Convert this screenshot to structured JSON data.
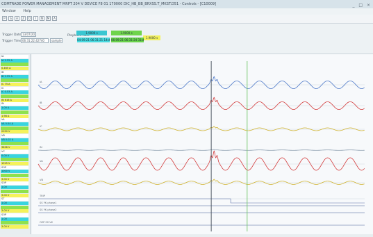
{
  "window": {
    "title": "COMTRADE POWER MANAGEMENT MRPT 204 V DEVICE F8 01 170000 DIC_HB_BB_BRXSS.T_MKST.D51 - Controls - [C10009]",
    "controls": "_ □ ×"
  },
  "menu": [
    "Window",
    "Help"
  ],
  "toolbar": [
    "P",
    "S",
    "A",
    "Z",
    "O",
    "I",
    "N",
    "M",
    "A"
  ],
  "params": {
    "trigger_date_label": "Trigger Date",
    "trigger_date_value": "13/07/2021",
    "trigger_time_label": "Trigger Time",
    "trigger_time_value": "06:31:22.42740",
    "sample_value": "sample",
    "playback_rate_label": "Playback Rate",
    "chip_a": "1.9000 s",
    "chip_b": "1.9000 s",
    "chip_c": "1.9000 s",
    "cursor_a": "04:09:21 06:31:21 14s63",
    "cursor_b": "06:09:21 06:31:24 31s63"
  },
  "tree": [
    {
      "text": "IA",
      "color": "#ffffff"
    },
    {
      "text": "IA 1.22 A",
      "color": "#39d4df"
    },
    {
      "text": "",
      "color": "#8ee14e"
    },
    {
      "text": "0.465 A",
      "color": "#f5f25a"
    },
    {
      "text": "IB",
      "color": "#ffffff"
    },
    {
      "text": "IB 1.22 A",
      "color": "#39d4df"
    },
    {
      "text": "",
      "color": "#8ee14e"
    },
    {
      "text": "IC 75 A",
      "color": "#f5f25a"
    },
    {
      "text": "IC",
      "color": "#ffffff"
    },
    {
      "text": "IC 0.53 A",
      "color": "#39d4df"
    },
    {
      "text": "",
      "color": "#8ee14e"
    },
    {
      "text": "IN 616 A",
      "color": "#f5f25a"
    },
    {
      "text": "IN",
      "color": "#ffffff"
    },
    {
      "text": "1.00 A",
      "color": "#39d4df"
    },
    {
      "text": "",
      "color": "#8ee14e"
    },
    {
      "text": "1.98 A",
      "color": "#f5f25a"
    },
    {
      "text": "VA",
      "color": "#ffffff"
    },
    {
      "text": "VA 0.04 A",
      "color": "#39d4df"
    },
    {
      "text": "",
      "color": "#8ee14e"
    },
    {
      "text": "2050 V",
      "color": "#f5f25a"
    },
    {
      "text": "VB",
      "color": "#ffffff"
    },
    {
      "text": "VB 0.02 A",
      "color": "#39d4df"
    },
    {
      "text": "",
      "color": "#8ee14e"
    },
    {
      "text": "3858 V",
      "color": "#f5f25a"
    },
    {
      "text": "VC",
      "color": "#ffffff"
    },
    {
      "text": "0.00 V",
      "color": "#39d4df"
    },
    {
      "text": "",
      "color": "#8ee14e"
    },
    {
      "text": "1925 V",
      "color": "#f5f25a"
    },
    {
      "text": "SOP",
      "color": "#ffffff"
    },
    {
      "text": "1000 V",
      "color": "#39d4df"
    },
    {
      "text": "",
      "color": "#8ee14e"
    },
    {
      "text": "3.00 V",
      "color": "#f5f25a"
    },
    {
      "text": "SOP",
      "color": "#ffffff"
    },
    {
      "text": "1.00",
      "color": "#39d4df"
    },
    {
      "text": "",
      "color": "#8ee14e"
    },
    {
      "text": "3.00 V",
      "color": "#f5f25a"
    },
    {
      "text": "ST",
      "color": "#ffffff"
    },
    {
      "text": "1.00",
      "color": "#39d4df"
    },
    {
      "text": "",
      "color": "#8ee14e"
    },
    {
      "text": "3.00 V",
      "color": "#f5f25a"
    },
    {
      "text": "SOP",
      "color": "#ffffff"
    },
    {
      "text": "1.00",
      "color": "#39d4df"
    },
    {
      "text": "",
      "color": "#8ee14e"
    },
    {
      "text": "3.00 V",
      "color": "#f5f25a"
    }
  ],
  "chart_data": {
    "type": "line",
    "title": "",
    "series": [
      {
        "label": "IA",
        "color": "#4c78c8",
        "amplitude": 0.28,
        "type": "analog"
      },
      {
        "label": "IB",
        "color": "#d33b3b",
        "amplitude": 0.28,
        "type": "analog"
      },
      {
        "label": "IC",
        "color": "#d0b32f",
        "amplitude": 0.1,
        "type": "analog"
      },
      {
        "label": "IN",
        "color": "#98a8b8",
        "amplitude": 0.02,
        "type": "analog"
      },
      {
        "label": "VA",
        "color": "#d33b3b",
        "amplitude": 0.45,
        "type": "analog"
      },
      {
        "label": "VB",
        "color": "#d0b32f",
        "amplitude": 0.12,
        "type": "analog"
      },
      {
        "label": "TRIP",
        "color": "#5b6ea6",
        "type": "digital"
      },
      {
        "label": "SS YK phase1",
        "color": "#5b6ea6",
        "type": "digital"
      },
      {
        "label": "SS YK phase2",
        "color": "#5b6ea6",
        "type": "digital"
      },
      {
        "label": "OEP SS VK",
        "color": "#5b6ea6",
        "type": "digital"
      }
    ],
    "cursor_a_time": 0.53,
    "cursor_b_time": 0.64,
    "event_time": 0.53
  }
}
